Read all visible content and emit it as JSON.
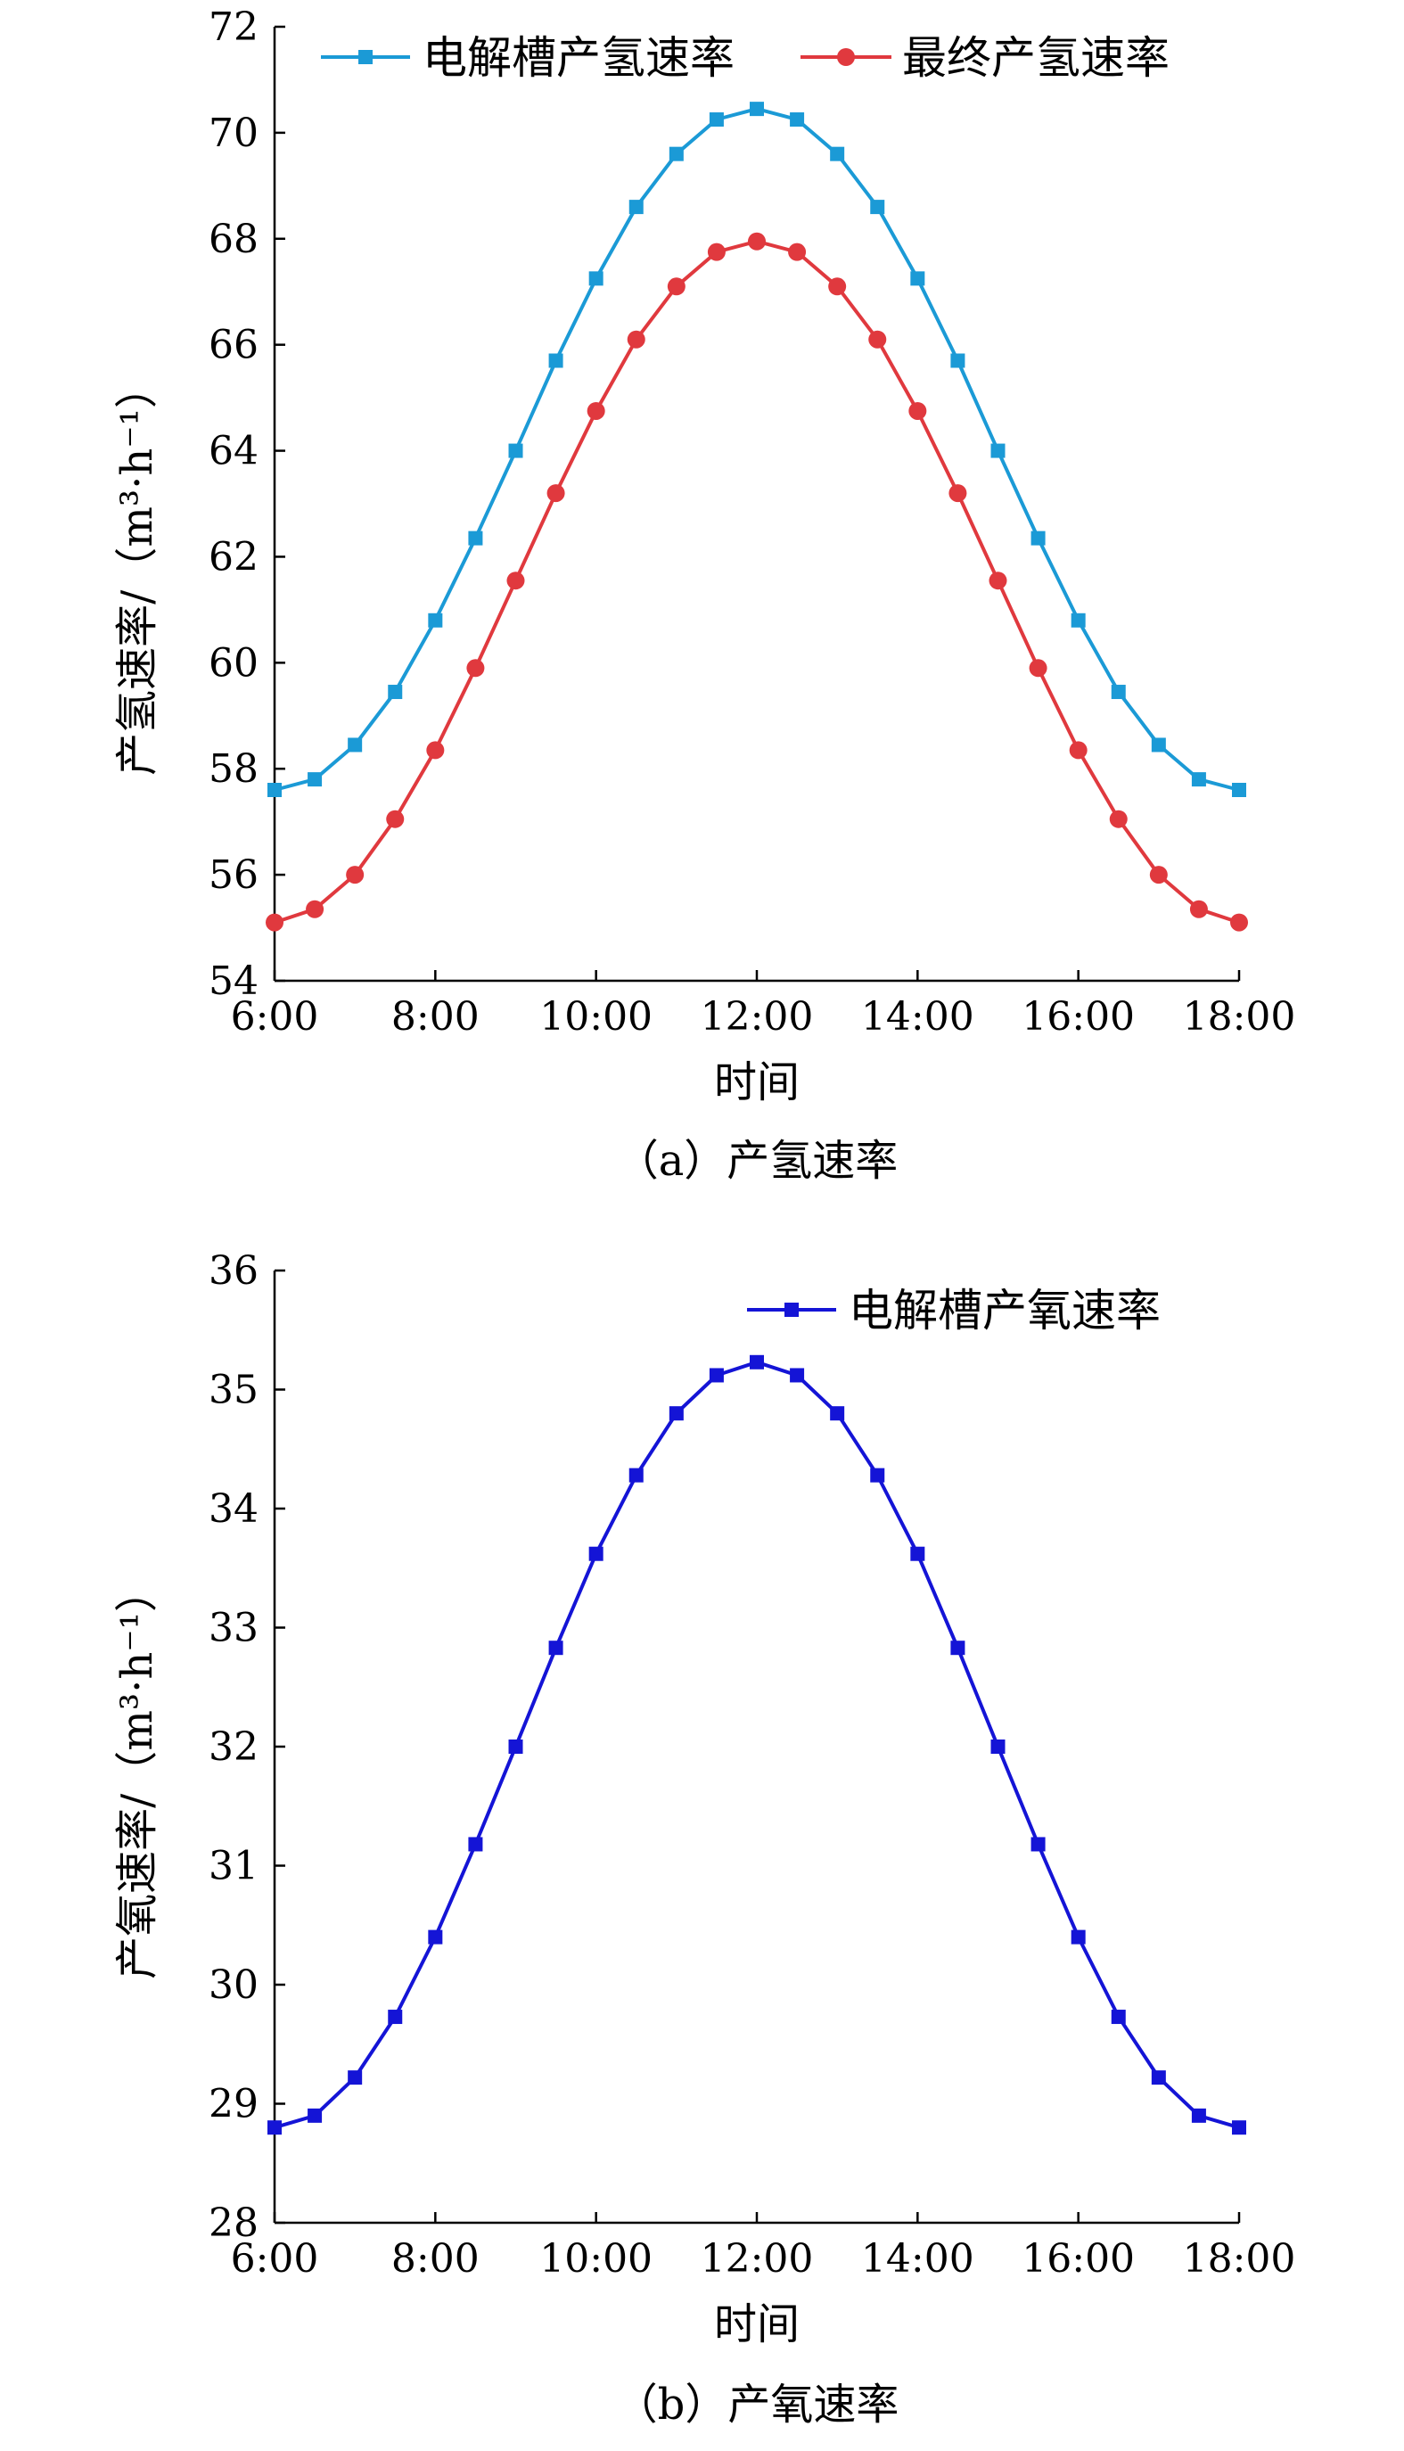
{
  "chart_data": [
    {
      "type": "line",
      "caption": "（a）产氢速率",
      "xlabel": "时间",
      "ylabel": "产氢速率/（m³·h⁻¹）",
      "ylim": [
        54,
        72
      ],
      "yticks": [
        "54",
        "56",
        "58",
        "60",
        "62",
        "64",
        "66",
        "68",
        "70",
        "72"
      ],
      "xticks": [
        "6:00",
        "8:00",
        "10:00",
        "12:00",
        "14:00",
        "16:00",
        "18:00"
      ],
      "x": [
        "6:00",
        "6:30",
        "7:00",
        "7:30",
        "8:00",
        "8:30",
        "9:00",
        "9:30",
        "10:00",
        "10:30",
        "11:00",
        "11:30",
        "12:00",
        "12:30",
        "13:00",
        "13:30",
        "14:00",
        "14:30",
        "15:00",
        "15:30",
        "16:00",
        "16:30",
        "17:00",
        "17:30",
        "18:00"
      ],
      "legend_position": "top",
      "series": [
        {
          "name": "电解槽产氢速率",
          "color": "#1b9ad6",
          "marker": "square",
          "values": [
            57.6,
            57.8,
            58.45,
            59.45,
            60.8,
            62.35,
            64.0,
            65.7,
            67.25,
            68.6,
            69.6,
            70.25,
            70.45,
            70.25,
            69.6,
            68.6,
            67.25,
            65.7,
            64.0,
            62.35,
            60.8,
            59.45,
            58.45,
            57.8,
            57.6
          ]
        },
        {
          "name": "最终产氢速率",
          "color": "#e0393e",
          "marker": "circle",
          "values": [
            55.1,
            55.35,
            56.0,
            57.05,
            58.35,
            59.9,
            61.55,
            63.2,
            64.75,
            66.1,
            67.1,
            67.75,
            67.95,
            67.75,
            67.1,
            66.1,
            64.75,
            63.2,
            61.55,
            59.9,
            58.35,
            57.05,
            56.0,
            55.35,
            55.1
          ]
        }
      ]
    },
    {
      "type": "line",
      "caption": "（b）产氧速率",
      "xlabel": "时间",
      "ylabel": "产氧速率/（m³·h⁻¹）",
      "ylim": [
        28,
        36
      ],
      "yticks": [
        "28",
        "29",
        "30",
        "31",
        "32",
        "33",
        "34",
        "35",
        "36"
      ],
      "xticks": [
        "6:00",
        "8:00",
        "10:00",
        "12:00",
        "14:00",
        "16:00",
        "18:00"
      ],
      "x": [
        "6:00",
        "6:30",
        "7:00",
        "7:30",
        "8:00",
        "8:30",
        "9:00",
        "9:30",
        "10:00",
        "10:30",
        "11:00",
        "11:30",
        "12:00",
        "12:30",
        "13:00",
        "13:30",
        "14:00",
        "14:30",
        "15:00",
        "15:30",
        "16:00",
        "16:30",
        "17:00",
        "17:30",
        "18:00"
      ],
      "legend_position": "top-right",
      "series": [
        {
          "name": "电解槽产氧速率",
          "color": "#1414d6",
          "marker": "square",
          "values": [
            28.8,
            28.9,
            29.22,
            29.73,
            30.4,
            31.18,
            32.0,
            32.83,
            33.62,
            34.28,
            34.8,
            35.12,
            35.23,
            35.12,
            34.8,
            34.28,
            33.62,
            32.83,
            32.0,
            31.18,
            30.4,
            29.73,
            29.22,
            28.9,
            28.8
          ]
        }
      ]
    }
  ]
}
